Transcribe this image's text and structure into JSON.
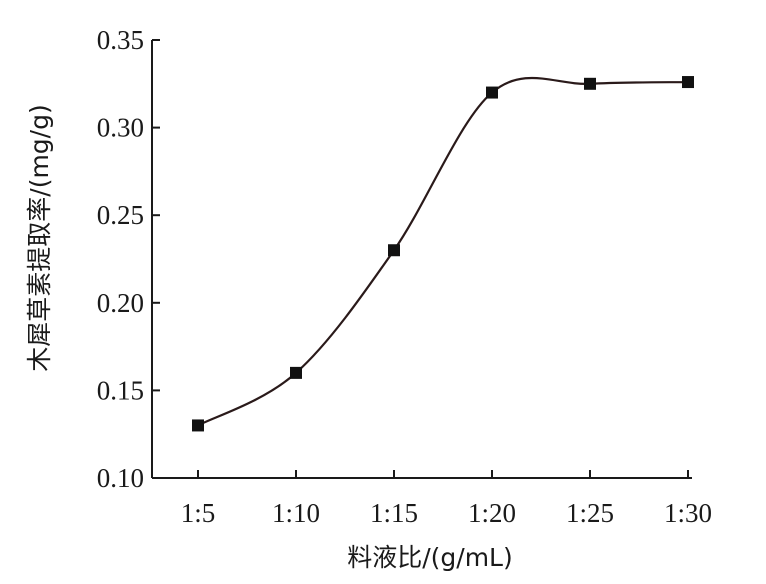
{
  "chart_data": {
    "type": "line",
    "categories": [
      "1:5",
      "1:10",
      "1:15",
      "1:20",
      "1:25",
      "1:30"
    ],
    "series": [
      {
        "values": [
          0.13,
          0.16,
          0.23,
          0.32,
          0.325,
          0.326
        ]
      }
    ],
    "xlabel": "料液比/(g/mL)",
    "ylabel": "木犀草素提取率/(mg/g)",
    "ylim": [
      0.1,
      0.35
    ],
    "yticks": [
      "0.10",
      "0.15",
      "0.20",
      "0.25",
      "0.30",
      "0.35"
    ],
    "grid": false,
    "smooth": true,
    "marker": "square",
    "line_color": "#2a1a1a"
  }
}
